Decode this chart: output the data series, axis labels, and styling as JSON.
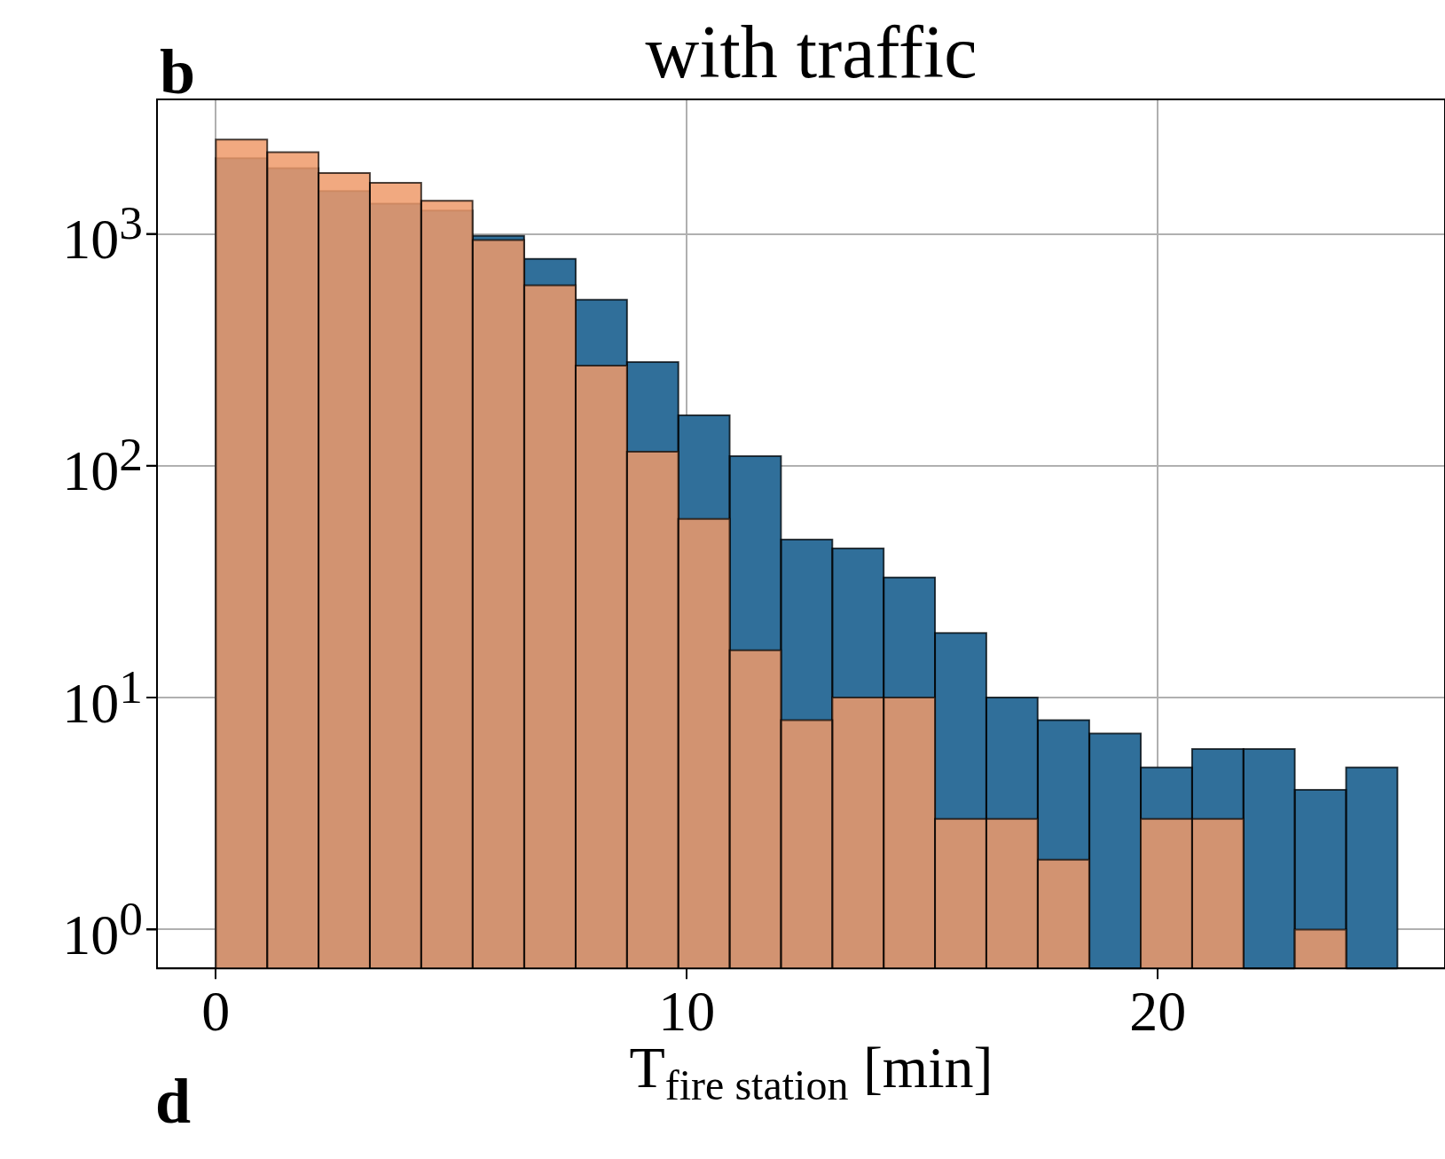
{
  "chart_data": {
    "type": "histogram",
    "title": "with traffic",
    "xlabel": "T$_{fire station}$ [min]",
    "annotations": [
      "b",
      "d"
    ],
    "bins": [
      0,
      1.09,
      2.18,
      3.27,
      4.36,
      5.45,
      6.55,
      7.64,
      8.73,
      9.82,
      10.91,
      12,
      13.09,
      14.18,
      15.27,
      16.36,
      17.45,
      18.55,
      19.64,
      20.73,
      21.82,
      22.91,
      24,
      25.09
    ],
    "series": [
      {
        "color": "#306f9a",
        "values": [
          2120,
          1920,
          1530,
          1350,
          1260,
          980,
          780,
          520,
          280,
          165,
          110,
          48,
          44,
          33,
          19,
          10,
          8,
          7,
          5,
          6,
          6,
          4,
          5
        ]
      },
      {
        "color": "#ee9a6a",
        "values": [
          2550,
          2250,
          1830,
          1660,
          1390,
          940,
          600,
          270,
          115,
          59,
          16,
          8,
          10,
          10,
          3,
          3,
          2,
          null,
          3,
          3,
          null,
          1,
          null
        ]
      }
    ],
    "log": "y",
    "grid": true,
    "xlim": [
      -1.25,
      26.1
    ],
    "xticks": [
      0,
      10,
      20
    ],
    "ylim": [
      0.68,
      3800
    ],
    "yticks": [
      {
        "value": 1,
        "label": "10$^{0}$"
      },
      {
        "value": 10,
        "label": "10$^{1}$"
      },
      {
        "value": 100,
        "label": "10$^{2}$"
      },
      {
        "value": 1000,
        "label": "10$^{3}$"
      }
    ]
  }
}
